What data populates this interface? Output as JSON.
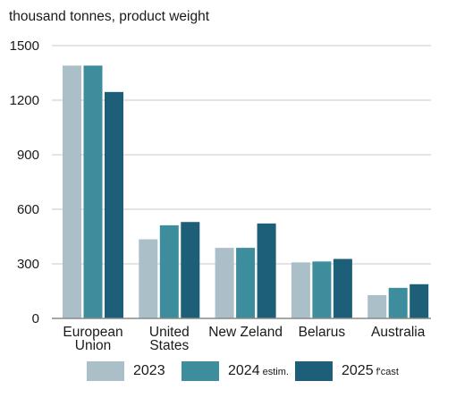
{
  "chart_data": {
    "type": "bar",
    "unit_label": "thousand tonnes, product weight",
    "categories": [
      "European Union",
      "United States",
      "New Zeland",
      "Belarus",
      "Australia"
    ],
    "category_lines": [
      [
        "European",
        "Union"
      ],
      [
        "United",
        "States"
      ],
      [
        "New Zeland"
      ],
      [
        "Belarus"
      ],
      [
        "Australia"
      ]
    ],
    "series": [
      {
        "name": "2023",
        "suffix": "",
        "color": "#abbfc9",
        "values": [
          1390,
          435,
          388,
          308,
          128
        ]
      },
      {
        "name": "2024",
        "suffix": "estim.",
        "color": "#3d8d9d",
        "values": [
          1390,
          512,
          388,
          313,
          168
        ]
      },
      {
        "name": "2025",
        "suffix": "f'cast",
        "color": "#1d5e78",
        "values": [
          1245,
          530,
          522,
          327,
          188
        ]
      }
    ],
    "ylim": [
      0,
      1500
    ],
    "yticks": [
      0,
      300,
      600,
      900,
      1200,
      1500
    ],
    "grid": true,
    "legend_position": "bottom"
  }
}
